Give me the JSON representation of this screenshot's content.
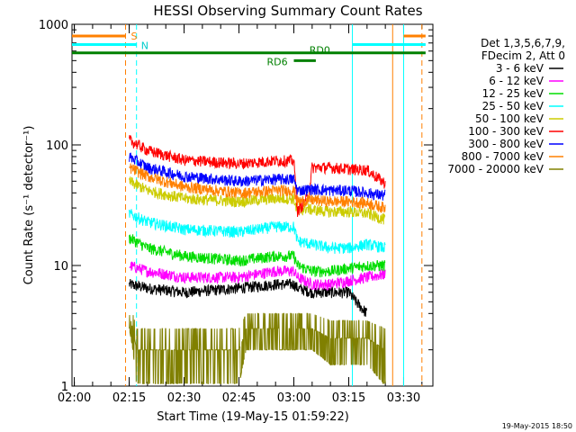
{
  "chart_data": {
    "type": "line",
    "title": "HESSI Observing Summary Count Rates",
    "xlabel": "Start Time (19-May-15 01:59:22)",
    "ylabel": "Count Rate (s⁻¹ detector⁻¹)",
    "y_scale": "log",
    "xlim": [
      "01:59:22",
      "03:38:00"
    ],
    "ylim": [
      1,
      1000
    ],
    "x_ticks": [
      "02:00",
      "02:15",
      "02:30",
      "02:45",
      "03:00",
      "03:15",
      "03:30"
    ],
    "y_ticks": [
      "1",
      "10",
      "100",
      "1000"
    ],
    "legend": {
      "position": "right",
      "header": [
        "Det 1,3,5,6,7,9,",
        "FDecim 2, Att 0"
      ]
    },
    "footer_stamp": "19-May-2015 18:50",
    "series": [
      {
        "name": "3 - 6 keV",
        "color": "#000000",
        "points": [
          [
            "02:14",
            null
          ],
          [
            "02:15",
            7
          ],
          [
            "02:20",
            6.5
          ],
          [
            "02:30",
            6
          ],
          [
            "02:45",
            6.5
          ],
          [
            "02:55",
            7
          ],
          [
            "03:00",
            7
          ],
          [
            "03:01",
            6.5
          ],
          [
            "03:05",
            6
          ],
          [
            "03:10",
            6
          ],
          [
            "03:15",
            6
          ],
          [
            "03:17",
            5
          ],
          [
            "03:20",
            4
          ]
        ]
      },
      {
        "name": "6 - 12 keV",
        "color": "#ff00ff",
        "points": [
          [
            "02:15",
            10
          ],
          [
            "02:20",
            9
          ],
          [
            "02:30",
            8
          ],
          [
            "02:45",
            8
          ],
          [
            "02:55",
            9
          ],
          [
            "03:00",
            9
          ],
          [
            "03:01",
            8
          ],
          [
            "03:05",
            7
          ],
          [
            "03:10",
            7
          ],
          [
            "03:15",
            7.5
          ],
          [
            "03:20",
            8
          ],
          [
            "03:25",
            8.5
          ]
        ]
      },
      {
        "name": "12 - 25 keV",
        "color": "#00dd00",
        "points": [
          [
            "02:15",
            17
          ],
          [
            "02:20",
            14
          ],
          [
            "02:30",
            12
          ],
          [
            "02:45",
            11
          ],
          [
            "02:55",
            12
          ],
          [
            "03:00",
            12
          ],
          [
            "03:01",
            10
          ],
          [
            "03:05",
            9
          ],
          [
            "03:10",
            9
          ],
          [
            "03:15",
            9.5
          ],
          [
            "03:20",
            10
          ],
          [
            "03:25",
            10
          ]
        ]
      },
      {
        "name": "25 - 50 keV",
        "color": "#00ffff",
        "points": [
          [
            "02:15",
            27
          ],
          [
            "02:20",
            23
          ],
          [
            "02:30",
            20
          ],
          [
            "02:45",
            19
          ],
          [
            "02:55",
            21
          ],
          [
            "03:00",
            21
          ],
          [
            "03:01",
            16
          ],
          [
            "03:05",
            15
          ],
          [
            "03:10",
            14
          ],
          [
            "03:15",
            14
          ],
          [
            "03:20",
            15
          ],
          [
            "03:25",
            14
          ]
        ]
      },
      {
        "name": "50 - 100 keV",
        "color": "#cccc00",
        "points": [
          [
            "02:15",
            50
          ],
          [
            "02:20",
            42
          ],
          [
            "02:30",
            36
          ],
          [
            "02:45",
            34
          ],
          [
            "02:55",
            36
          ],
          [
            "03:00",
            36
          ],
          [
            "03:01",
            27
          ],
          [
            "03:03",
            30
          ],
          [
            "03:05",
            29
          ],
          [
            "03:10",
            28
          ],
          [
            "03:15",
            28
          ],
          [
            "03:20",
            27
          ],
          [
            "03:25",
            24
          ]
        ]
      },
      {
        "name": "100 - 300 keV",
        "color": "#ff0000",
        "points": [
          [
            "02:15",
            110
          ],
          [
            "02:20",
            90
          ],
          [
            "02:30",
            75
          ],
          [
            "02:45",
            70
          ],
          [
            "02:55",
            74
          ],
          [
            "03:00",
            74
          ],
          [
            "03:01",
            28
          ],
          [
            "03:03",
            34
          ],
          [
            "03:04",
            38
          ],
          [
            "03:05",
            65
          ],
          [
            "03:10",
            65
          ],
          [
            "03:15",
            63
          ],
          [
            "03:20",
            62
          ],
          [
            "03:25",
            48
          ]
        ]
      },
      {
        "name": "300 - 800 keV",
        "color": "#0000ff",
        "points": [
          [
            "02:15",
            80
          ],
          [
            "02:20",
            65
          ],
          [
            "02:30",
            55
          ],
          [
            "02:45",
            50
          ],
          [
            "02:55",
            52
          ],
          [
            "03:00",
            52
          ],
          [
            "03:01",
            42
          ],
          [
            "03:05",
            43
          ],
          [
            "03:10",
            42
          ],
          [
            "03:15",
            42
          ],
          [
            "03:20",
            40
          ],
          [
            "03:25",
            38
          ]
        ]
      },
      {
        "name": "800 - 7000 keV",
        "color": "#ff8000",
        "points": [
          [
            "02:15",
            65
          ],
          [
            "02:20",
            55
          ],
          [
            "02:30",
            45
          ],
          [
            "02:45",
            40
          ],
          [
            "02:55",
            42
          ],
          [
            "03:00",
            42
          ],
          [
            "03:01",
            34
          ],
          [
            "03:05",
            35
          ],
          [
            "03:10",
            34
          ],
          [
            "03:15",
            34
          ],
          [
            "03:20",
            33
          ],
          [
            "03:25",
            30
          ]
        ]
      },
      {
        "name": "7000 - 20000 keV",
        "color": "#808000",
        "points": [
          [
            "02:15",
            4
          ],
          [
            "02:16",
            3
          ],
          [
            "02:17",
            2
          ],
          [
            "02:30",
            2
          ],
          [
            "02:40",
            2
          ],
          [
            "02:45",
            2
          ],
          [
            "02:47",
            3
          ],
          [
            "02:55",
            3
          ],
          [
            "03:00",
            3
          ],
          [
            "03:05",
            3
          ],
          [
            "03:10",
            2.5
          ],
          [
            "03:15",
            2.5
          ],
          [
            "03:20",
            2.5
          ],
          [
            "03:25",
            2
          ]
        ]
      }
    ],
    "annotations": {
      "S": {
        "label": "S",
        "color": "#ff8000",
        "level": 800,
        "segments": [
          [
            "01:59:22",
            "02:14"
          ],
          [
            "03:30",
            "03:36"
          ]
        ]
      },
      "N": {
        "label": "N",
        "color": "#00ffff",
        "level": 680,
        "segments": [
          [
            "01:59:22",
            "02:17"
          ],
          [
            "03:16",
            "03:36"
          ]
        ]
      },
      "RD0": {
        "label": "RD0",
        "color": "#008000",
        "level": 580,
        "segments": [
          [
            "01:59:22",
            "03:36"
          ]
        ]
      },
      "RD6": {
        "label": "RD6",
        "color": "#008000",
        "level": 500,
        "segments": [
          [
            "03:00",
            "03:06"
          ]
        ]
      }
    },
    "vertical_markers": [
      {
        "time": "02:14",
        "color": "#ff8000",
        "style": "dashed"
      },
      {
        "time": "02:17",
        "color": "#00ffff",
        "style": "dashed"
      },
      {
        "time": "03:16",
        "color": "#00ffff",
        "style": "solid"
      },
      {
        "time": "03:27",
        "color": "#ff8000",
        "style": "solid"
      },
      {
        "time": "03:30",
        "color": "#00ffff",
        "style": "solid"
      },
      {
        "time": "03:35",
        "color": "#ff8000",
        "style": "dashed"
      }
    ]
  }
}
